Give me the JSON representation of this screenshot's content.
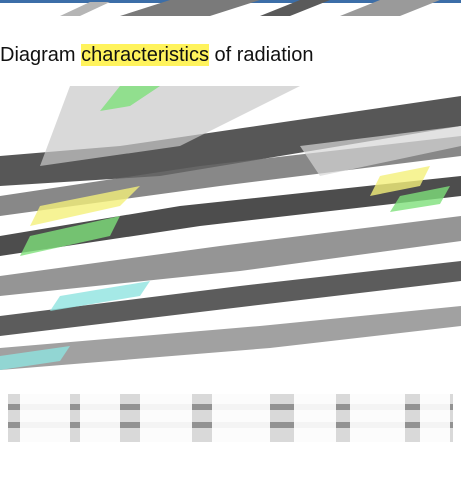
{
  "header": {
    "title_prefix": "Diagram ",
    "title_highlight": "characteristics",
    "title_suffix": " of radiation"
  },
  "colors": {
    "stroke_dark": "#2e2e2e",
    "stroke_mid": "#8a8a8a",
    "stroke_light": "#c9c9c9",
    "accent_green": "#7ee07a",
    "accent_yellow": "#f4f07a",
    "accent_cyan": "#8fe3e0",
    "accent_blue": "#3c6ea8"
  }
}
